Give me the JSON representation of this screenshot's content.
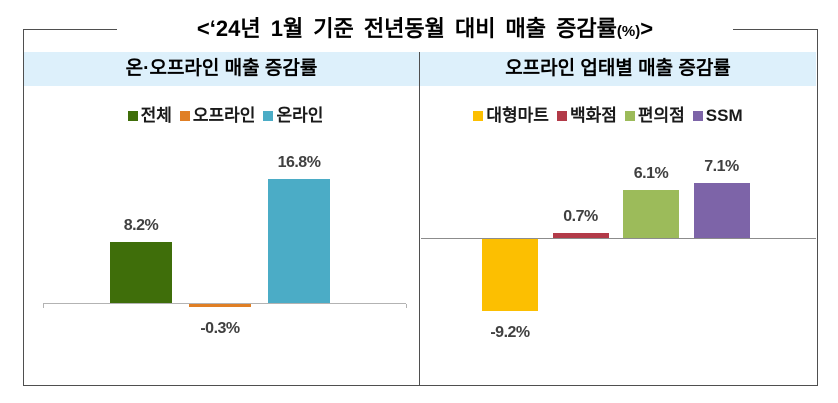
{
  "title": {
    "main": "<‘24년 1월 기준 전년동월 대비 매출 증감률",
    "unit": "(%)",
    "close": ">"
  },
  "colors": {
    "box_border": "#4f4f4f",
    "header_background": "#ddf0fb",
    "left_axis": "#b3b3b3",
    "right_axis": "#8c8c8c",
    "label_text": "#404040"
  },
  "chart_data": [
    {
      "type": "bar",
      "title": "온·오프라인 매출 증감률",
      "categories": [
        "전체",
        "오프라인",
        "온라인"
      ],
      "values": [
        8.2,
        -0.3,
        16.8
      ],
      "labels": [
        "8.2%",
        "-0.3%",
        "16.8%"
      ],
      "colors": [
        "#3f6e0a",
        "#e07f25",
        "#4bacc6"
      ],
      "unit": "%",
      "legend_position": "top",
      "grid": false,
      "ylim": [
        -3,
        18
      ]
    },
    {
      "type": "bar",
      "title": "오프라인 업태별 매출 증감률",
      "categories": [
        "대형마트",
        "백화점",
        "편의점",
        "SSM"
      ],
      "values": [
        -9.2,
        0.7,
        6.1,
        7.1
      ],
      "labels": [
        "-9.2%",
        "0.7%",
        "6.1%",
        "7.1%"
      ],
      "colors": [
        "#fcbf01",
        "#b23a48",
        "#9cbb5a",
        "#7d64a8"
      ],
      "unit": "%",
      "legend_position": "top",
      "grid": false,
      "ylim": [
        -12,
        9
      ]
    }
  ]
}
